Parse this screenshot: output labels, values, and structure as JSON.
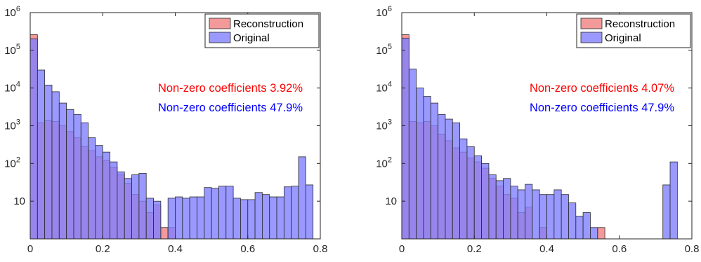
{
  "colors": {
    "reconstruction_fill": "#f08080",
    "original_fill": "#8080ff",
    "reconstruction_text": "#ff0000",
    "original_text": "#0000ff",
    "axis": "#262626"
  },
  "chart_data": [
    {
      "type": "bar",
      "subtype": "overlaid-histogram",
      "y_scale": "log",
      "xlim": [
        0,
        0.8
      ],
      "ylim": [
        1,
        1000000
      ],
      "x_ticks": [
        "0",
        "0.2",
        "0.4",
        "0.6",
        "0.8"
      ],
      "y_ticks": [
        "10",
        "10^2",
        "10^3",
        "10^4",
        "10^5",
        "10^6"
      ],
      "bin_width": 0.02,
      "grid": false,
      "legend_position": "top-right",
      "legend": [
        "Reconstruction",
        "Original"
      ],
      "annotations": [
        "Non-zero coefficients 3.92%",
        "Non-zero coefficients 47.9%"
      ],
      "series": [
        {
          "name": "Reconstruction",
          "bin_starts": [
            0,
            0.02,
            0.04,
            0.06,
            0.08,
            0.1,
            0.12,
            0.14,
            0.16,
            0.18,
            0.2,
            0.22,
            0.24,
            0.26,
            0.28,
            0.3,
            0.32,
            0.34,
            0.36,
            0.38
          ],
          "values": [
            260000,
            1200,
            1400,
            1300,
            1000,
            700,
            480,
            280,
            220,
            150,
            120,
            80,
            50,
            30,
            15,
            10,
            5,
            8,
            2,
            2
          ]
        },
        {
          "name": "Original",
          "bin_starts": [
            0,
            0.02,
            0.04,
            0.06,
            0.08,
            0.1,
            0.12,
            0.14,
            0.16,
            0.18,
            0.2,
            0.22,
            0.24,
            0.26,
            0.28,
            0.3,
            0.32,
            0.34,
            0.36,
            0.38,
            0.4,
            0.42,
            0.44,
            0.46,
            0.48,
            0.5,
            0.52,
            0.54,
            0.56,
            0.58,
            0.6,
            0.62,
            0.64,
            0.66,
            0.68,
            0.7,
            0.72,
            0.74,
            0.76
          ],
          "values": [
            200000,
            30000,
            12000,
            8000,
            4000,
            2700,
            2000,
            1200,
            480,
            300,
            200,
            110,
            60,
            40,
            50,
            55,
            12,
            10,
            1,
            12,
            13,
            12,
            13,
            13,
            23,
            22,
            25,
            25,
            12,
            11,
            11,
            17,
            15,
            13,
            13,
            24,
            25,
            150,
            27
          ]
        }
      ]
    },
    {
      "type": "bar",
      "subtype": "overlaid-histogram",
      "y_scale": "log",
      "xlim": [
        0,
        0.8
      ],
      "ylim": [
        1,
        1000000
      ],
      "x_ticks": [
        "0",
        "0.2",
        "0.4",
        "0.6",
        "0.8"
      ],
      "y_ticks": [
        "10",
        "10^2",
        "10^3",
        "10^4",
        "10^5",
        "10^6"
      ],
      "bin_width": 0.02,
      "grid": false,
      "legend_position": "top-right",
      "legend": [
        "Reconstruction",
        "Original"
      ],
      "annotations": [
        "Non-zero coefficients 4.07%",
        "Non-zero coefficients 47.9%"
      ],
      "series": [
        {
          "name": "Reconstruction",
          "bin_starts": [
            0,
            0.02,
            0.04,
            0.06,
            0.08,
            0.1,
            0.12,
            0.14,
            0.16,
            0.18,
            0.2,
            0.22,
            0.24,
            0.26,
            0.28,
            0.3,
            0.32,
            0.34,
            0.36,
            0.38,
            0.4,
            0.42,
            0.44,
            0.46,
            0.48,
            0.5,
            0.52,
            0.54
          ],
          "values": [
            260000,
            1300,
            1200,
            1300,
            1000,
            600,
            400,
            260,
            200,
            140,
            110,
            75,
            40,
            25,
            15,
            12,
            5,
            7,
            1,
            2,
            0,
            0,
            0,
            0,
            0,
            0,
            0,
            2
          ]
        },
        {
          "name": "Original",
          "bin_starts": [
            0,
            0.02,
            0.04,
            0.06,
            0.08,
            0.1,
            0.12,
            0.14,
            0.16,
            0.18,
            0.2,
            0.22,
            0.24,
            0.26,
            0.28,
            0.3,
            0.32,
            0.34,
            0.36,
            0.38,
            0.4,
            0.42,
            0.44,
            0.46,
            0.48,
            0.5,
            0.52,
            0.54,
            0.56,
            0.58,
            0.6,
            0.62,
            0.64,
            0.66,
            0.68,
            0.7,
            0.72,
            0.74
          ],
          "values": [
            210000,
            32000,
            10000,
            6000,
            4000,
            2000,
            1500,
            1200,
            450,
            280,
            160,
            100,
            50,
            35,
            40,
            25,
            20,
            28,
            20,
            15,
            15,
            20,
            15,
            9,
            4,
            5,
            2,
            1,
            0,
            0,
            0,
            0,
            0,
            0,
            0,
            0,
            27,
            110
          ]
        }
      ]
    }
  ]
}
